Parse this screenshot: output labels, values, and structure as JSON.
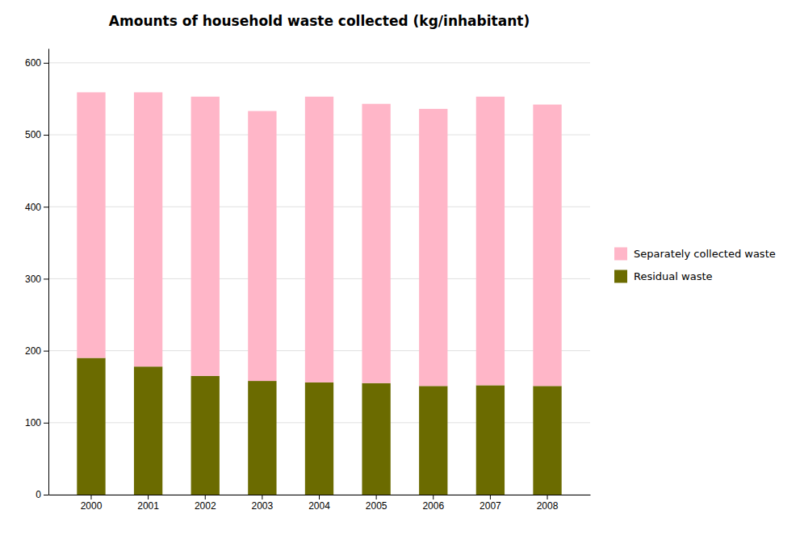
{
  "chart_data": {
    "type": "bar",
    "stacked": true,
    "title": "Amounts of household waste collected (kg/inhabitant)",
    "categories": [
      "2000",
      "2001",
      "2002",
      "2003",
      "2004",
      "2005",
      "2006",
      "2007",
      "2008"
    ],
    "series": [
      {
        "name": "Residual waste",
        "color": "#6b6b00",
        "values": [
          190,
          178,
          165,
          158,
          156,
          155,
          151,
          152,
          151
        ]
      },
      {
        "name": "Separately collected waste",
        "color": "#ffb6c8",
        "values": [
          369,
          381,
          388,
          375,
          397,
          388,
          385,
          401,
          391
        ]
      }
    ],
    "ylim": [
      0,
      620
    ],
    "yticks": [
      0,
      100,
      200,
      300,
      400,
      500,
      600
    ],
    "grid": true,
    "legend": "right"
  }
}
